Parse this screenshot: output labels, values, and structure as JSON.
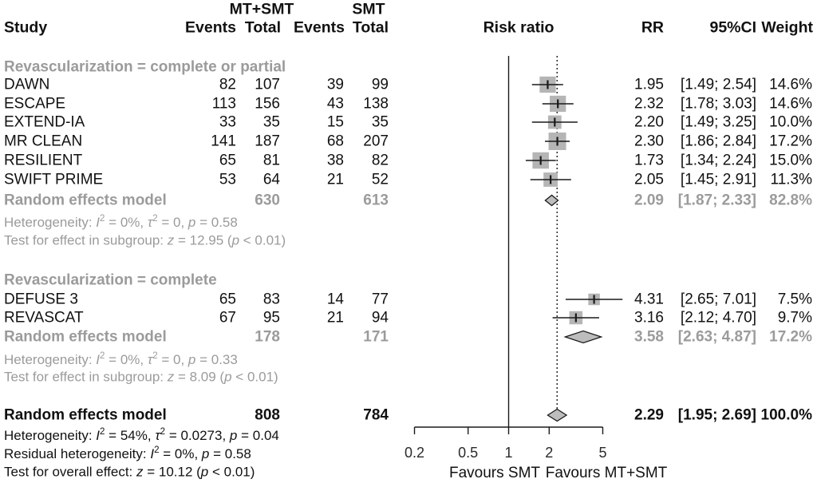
{
  "header": {
    "study": "Study",
    "group_mt_smt": "MT+SMT",
    "group_smt": "SMT",
    "events": "Events",
    "total": "Total",
    "risk_ratio": "Risk ratio",
    "rr": "RR",
    "ci": "95%CI",
    "weight": "Weight"
  },
  "colors": {
    "line": "#1a1a1a",
    "square": "#b5b5b5",
    "diamond": "#bdbdbd",
    "gray_text": "#9b9b9b",
    "axis_text": "#2a2a2a"
  },
  "chart_data": {
    "type": "forest",
    "effect_measure": "Risk ratio",
    "x_scale": "log",
    "x_ticks": [
      0.2,
      0.5,
      1,
      2,
      5
    ],
    "x_tick_labels": [
      "0.2",
      "0.5",
      "1",
      "2",
      "5"
    ],
    "reference_line": 1,
    "overall_dashed_line": 2.29,
    "favours_left": "Favours SMT",
    "favours_right": "Favours MT+SMT",
    "groups": [
      {
        "label": "Revascularization = complete or partial",
        "studies": [
          {
            "name": "DAWN",
            "events_mt": 82,
            "total_mt": 107,
            "events_smt": 39,
            "total_smt": 99,
            "rr": 1.95,
            "lo": 1.49,
            "hi": 2.54,
            "rr_text": "1.95",
            "ci_text": "[1.49; 2.54]",
            "weight": "14.6%"
          },
          {
            "name": "ESCAPE",
            "events_mt": 113,
            "total_mt": 156,
            "events_smt": 43,
            "total_smt": 138,
            "rr": 2.32,
            "lo": 1.78,
            "hi": 3.03,
            "rr_text": "2.32",
            "ci_text": "[1.78; 3.03]",
            "weight": "14.6%"
          },
          {
            "name": "EXTEND-IA",
            "events_mt": 33,
            "total_mt": 35,
            "events_smt": 15,
            "total_smt": 35,
            "rr": 2.2,
            "lo": 1.49,
            "hi": 3.25,
            "rr_text": "2.20",
            "ci_text": "[1.49; 3.25]",
            "weight": "10.0%"
          },
          {
            "name": "MR CLEAN",
            "events_mt": 141,
            "total_mt": 187,
            "events_smt": 68,
            "total_smt": 207,
            "rr": 2.3,
            "lo": 1.86,
            "hi": 2.84,
            "rr_text": "2.30",
            "ci_text": "[1.86; 2.84]",
            "weight": "17.2%"
          },
          {
            "name": "RESILIENT",
            "events_mt": 65,
            "total_mt": 81,
            "events_smt": 38,
            "total_smt": 82,
            "rr": 1.73,
            "lo": 1.34,
            "hi": 2.24,
            "rr_text": "1.73",
            "ci_text": "[1.34; 2.24]",
            "weight": "15.0%"
          },
          {
            "name": "SWIFT PRIME",
            "events_mt": 53,
            "total_mt": 64,
            "events_smt": 21,
            "total_smt": 52,
            "rr": 2.05,
            "lo": 1.45,
            "hi": 2.91,
            "rr_text": "2.05",
            "ci_text": "[1.45; 2.91]",
            "weight": "11.3%"
          }
        ],
        "summary": {
          "label": "Random effects model",
          "total_mt": 630,
          "total_smt": 613,
          "rr": 2.09,
          "lo": 1.87,
          "hi": 2.33,
          "rr_text": "2.09",
          "ci_text": "[1.87; 2.33]",
          "weight": "82.8%"
        },
        "notes": [
          "Heterogeneity: I² = 0%, τ² = 0, p = 0.58",
          "Test for effect in subgroup: z = 12.95 (p < 0.01)"
        ]
      },
      {
        "label": "Revascularization = complete",
        "studies": [
          {
            "name": "DEFUSE 3",
            "events_mt": 65,
            "total_mt": 83,
            "events_smt": 14,
            "total_smt": 77,
            "rr": 4.31,
            "lo": 2.65,
            "hi": 7.01,
            "rr_text": "4.31",
            "ci_text": "[2.65; 7.01]",
            "weight": "7.5%"
          },
          {
            "name": "REVASCAT",
            "events_mt": 67,
            "total_mt": 95,
            "events_smt": 21,
            "total_smt": 94,
            "rr": 3.16,
            "lo": 2.12,
            "hi": 4.7,
            "rr_text": "3.16",
            "ci_text": "[2.12; 4.70]",
            "weight": "9.7%"
          }
        ],
        "summary": {
          "label": "Random effects model",
          "total_mt": 178,
          "total_smt": 171,
          "rr": 3.58,
          "lo": 2.63,
          "hi": 4.87,
          "rr_text": "3.58",
          "ci_text": "[2.63; 4.87]",
          "weight": "17.2%"
        },
        "notes": [
          "Heterogeneity: I² = 0%, τ² = 0, p = 0.33",
          "Test for effect in subgroup: z = 8.09 (p < 0.01)"
        ]
      }
    ],
    "overall": {
      "label": "Random effects model",
      "total_mt": 808,
      "total_smt": 784,
      "rr": 2.29,
      "lo": 1.95,
      "hi": 2.69,
      "rr_text": "2.29",
      "ci_text": "[1.95; 2.69]",
      "weight": "100.0%",
      "notes": [
        "Heterogeneity: I² = 54%, τ² = 0.0273, p = 0.04",
        "Residual heterogeneity: I² = 0%, p = 0.58",
        "Test for overall effect: z = 10.12 (p < 0.01)"
      ]
    }
  }
}
